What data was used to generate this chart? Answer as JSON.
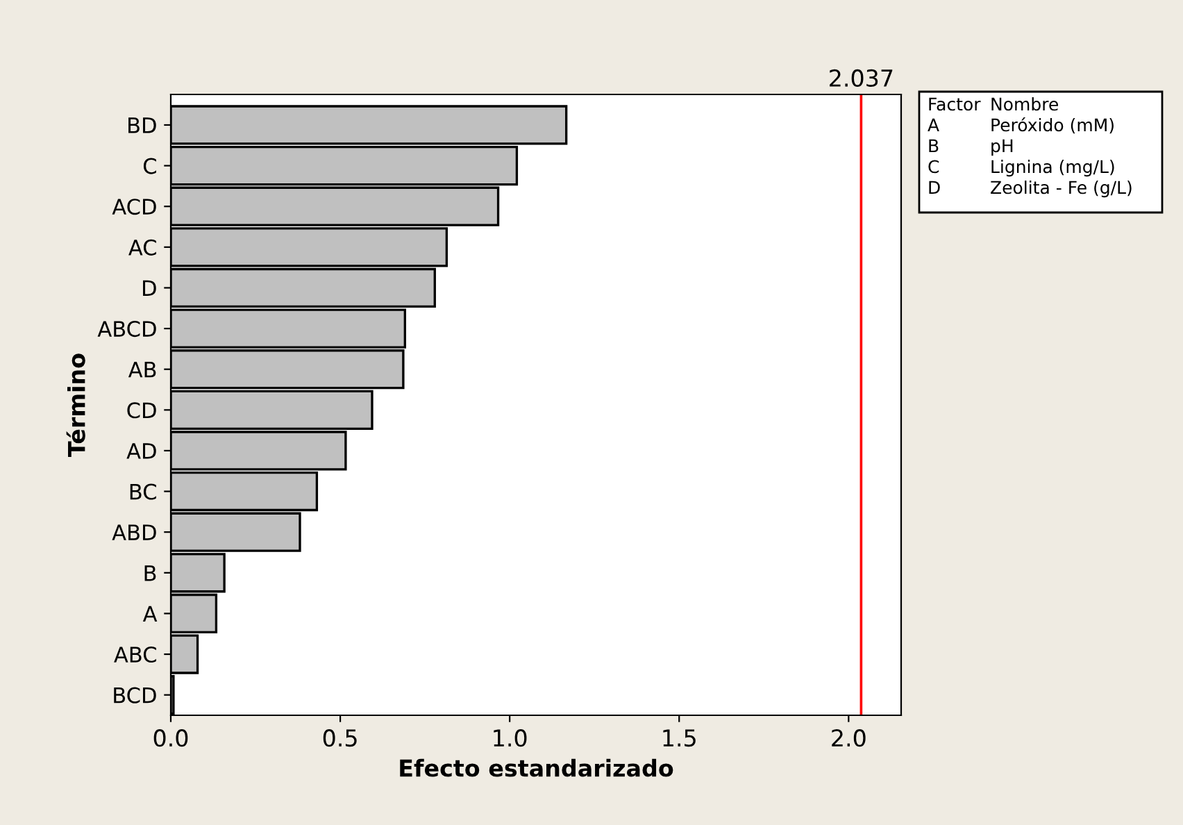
{
  "chart_data": {
    "type": "bar",
    "orientation": "horizontal",
    "xlabel": "Efecto estandarizado",
    "ylabel": "Término",
    "categories": [
      "BD",
      "C",
      "ACD",
      "AC",
      "D",
      "ABCD",
      "AB",
      "CD",
      "AD",
      "BC",
      "ABD",
      "B",
      "A",
      "ABC",
      "BCD"
    ],
    "values": [
      1.167,
      1.021,
      0.966,
      0.814,
      0.779,
      0.691,
      0.686,
      0.594,
      0.516,
      0.431,
      0.381,
      0.158,
      0.134,
      0.079,
      0.008
    ],
    "color": "#c0c0c0",
    "xlim": [
      0,
      2.155
    ],
    "xticks": [
      {
        "value": 0,
        "label": "0.0"
      },
      {
        "value": 0.5,
        "label": "0.5"
      },
      {
        "value": 1,
        "label": "1.0"
      },
      {
        "value": 1.5,
        "label": "1.5"
      },
      {
        "value": 2,
        "label": "2.0"
      }
    ],
    "ref_lines": [
      {
        "axis": "x",
        "value": 2.037,
        "label": "2.037",
        "color": "#ff0000"
      }
    ],
    "annotations": [
      "Factor",
      "Nombre",
      "A",
      "Peróxido (mM)",
      "B",
      "pH",
      "C",
      "Lignina (mg/L)",
      "D",
      "Zeolita - Fe (g/L)"
    ],
    "grid": false,
    "legend": false
  }
}
